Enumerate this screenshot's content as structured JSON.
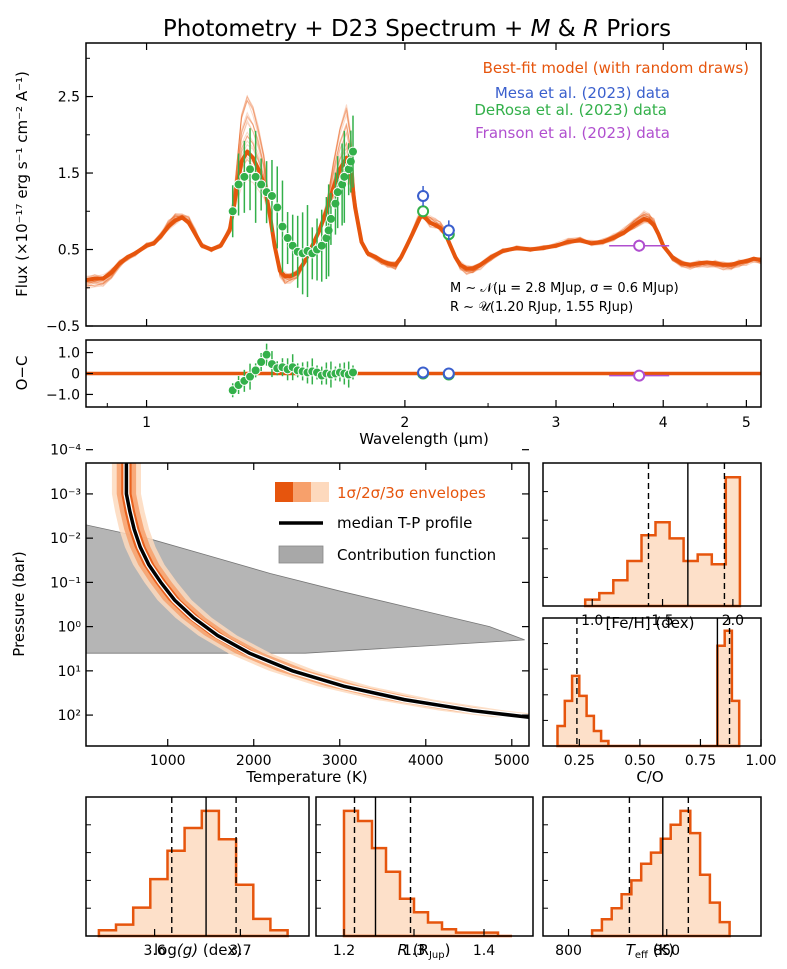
{
  "colors": {
    "model": "#e6550d",
    "mesa": "#3a5fcd",
    "derosa": "#33b04a",
    "franson": "#b04fcf",
    "sig1": "#e6550d",
    "sig2": "#f7a06b",
    "sig3": "#fdd9bd",
    "hist_fill": "#fde0c9",
    "contrib": "#a8a8a8"
  },
  "chart_data": [
    {
      "id": "spectrum",
      "type": "line",
      "title_parts": [
        "Photometry + D23 Spectrum + ",
        "M",
        " & ",
        "R",
        " Priors"
      ],
      "ylabel": "Flux (×10⁻¹⁷ erg s⁻¹ cm⁻² A⁻¹)",
      "ylim": [
        -0.5,
        3.2
      ],
      "yticks": [
        -0.5,
        0.5,
        1.5,
        2.5
      ],
      "ytick_labels": [
        "−0.5",
        "0.5",
        "1.5",
        "2.5"
      ],
      "xscale": "log",
      "xlim": [
        0.85,
        5.2
      ],
      "legend": [
        {
          "label": "Best-fit model (with random draws)",
          "color_key": "model"
        },
        {
          "label": "Mesa et al. (2023) data",
          "color_key": "mesa"
        },
        {
          "label": "DeRosa et al. (2023) data",
          "color_key": "derosa"
        },
        {
          "label": "Franson et al. (2023) data",
          "color_key": "franson"
        }
      ],
      "annotation_mass": "M ∼ 𝒩(μ = 2.8 MJup, σ = 0.6 MJup)",
      "annotation_radius": "R ∼ 𝒰(1.20 RJup, 1.55 RJup)",
      "model": [
        [
          0.85,
          0.1
        ],
        [
          0.87,
          0.12
        ],
        [
          0.89,
          0.12
        ],
        [
          0.91,
          0.2
        ],
        [
          0.93,
          0.32
        ],
        [
          0.95,
          0.4
        ],
        [
          0.97,
          0.45
        ],
        [
          1.0,
          0.55
        ],
        [
          1.02,
          0.58
        ],
        [
          1.04,
          0.68
        ],
        [
          1.06,
          0.8
        ],
        [
          1.08,
          0.88
        ],
        [
          1.1,
          0.92
        ],
        [
          1.12,
          0.85
        ],
        [
          1.14,
          0.7
        ],
        [
          1.16,
          0.55
        ],
        [
          1.19,
          0.5
        ],
        [
          1.22,
          0.55
        ],
        [
          1.25,
          0.75
        ],
        [
          1.27,
          1.2
        ],
        [
          1.29,
          1.65
        ],
        [
          1.31,
          1.78
        ],
        [
          1.33,
          1.7
        ],
        [
          1.35,
          1.55
        ],
        [
          1.37,
          1.35
        ],
        [
          1.39,
          1.0
        ],
        [
          1.41,
          0.55
        ],
        [
          1.43,
          0.22
        ],
        [
          1.45,
          0.15
        ],
        [
          1.47,
          0.15
        ],
        [
          1.5,
          0.2
        ],
        [
          1.53,
          0.35
        ],
        [
          1.56,
          0.55
        ],
        [
          1.59,
          0.75
        ],
        [
          1.62,
          1.0
        ],
        [
          1.65,
          1.3
        ],
        [
          1.68,
          1.55
        ],
        [
          1.71,
          1.7
        ],
        [
          1.73,
          1.5
        ],
        [
          1.75,
          1.05
        ],
        [
          1.78,
          0.6
        ],
        [
          1.81,
          0.45
        ],
        [
          1.85,
          0.4
        ],
        [
          1.88,
          0.35
        ],
        [
          1.91,
          0.32
        ],
        [
          1.95,
          0.3
        ],
        [
          1.98,
          0.4
        ],
        [
          2.01,
          0.55
        ],
        [
          2.04,
          0.7
        ],
        [
          2.07,
          0.85
        ],
        [
          2.09,
          0.95
        ],
        [
          2.11,
          0.92
        ],
        [
          2.14,
          0.85
        ],
        [
          2.17,
          0.82
        ],
        [
          2.2,
          0.78
        ],
        [
          2.23,
          0.7
        ],
        [
          2.26,
          0.55
        ],
        [
          2.29,
          0.4
        ],
        [
          2.32,
          0.3
        ],
        [
          2.36,
          0.25
        ],
        [
          2.4,
          0.25
        ],
        [
          2.45,
          0.3
        ],
        [
          2.52,
          0.4
        ],
        [
          2.6,
          0.48
        ],
        [
          2.7,
          0.52
        ],
        [
          2.8,
          0.5
        ],
        [
          2.9,
          0.52
        ],
        [
          3.0,
          0.55
        ],
        [
          3.1,
          0.6
        ],
        [
          3.2,
          0.62
        ],
        [
          3.3,
          0.58
        ],
        [
          3.4,
          0.6
        ],
        [
          3.5,
          0.65
        ],
        [
          3.6,
          0.72
        ],
        [
          3.7,
          0.82
        ],
        [
          3.8,
          0.9
        ],
        [
          3.85,
          0.88
        ],
        [
          3.9,
          0.82
        ],
        [
          3.95,
          0.7
        ],
        [
          4.0,
          0.55
        ],
        [
          4.1,
          0.4
        ],
        [
          4.2,
          0.32
        ],
        [
          4.3,
          0.3
        ],
        [
          4.4,
          0.32
        ],
        [
          4.5,
          0.33
        ],
        [
          4.6,
          0.32
        ],
        [
          4.7,
          0.3
        ],
        [
          4.8,
          0.3
        ],
        [
          4.9,
          0.33
        ],
        [
          5.0,
          0.35
        ],
        [
          5.1,
          0.38
        ],
        [
          5.2,
          0.36
        ]
      ],
      "derosa": [
        [
          1.26,
          1.0
        ],
        [
          1.28,
          1.35
        ],
        [
          1.3,
          1.45
        ],
        [
          1.32,
          1.55
        ],
        [
          1.34,
          1.45
        ],
        [
          1.36,
          1.35
        ],
        [
          1.38,
          1.25
        ],
        [
          1.4,
          1.2
        ],
        [
          1.42,
          1.05
        ],
        [
          1.44,
          0.8
        ],
        [
          1.46,
          0.65
        ],
        [
          1.48,
          0.55
        ],
        [
          1.5,
          0.47
        ],
        [
          1.52,
          0.45
        ],
        [
          1.54,
          0.48
        ],
        [
          1.56,
          0.45
        ],
        [
          1.58,
          0.5
        ],
        [
          1.6,
          0.55
        ],
        [
          1.62,
          0.65
        ],
        [
          1.63,
          0.75
        ],
        [
          1.64,
          0.9
        ],
        [
          1.66,
          1.1
        ],
        [
          1.67,
          1.25
        ],
        [
          1.69,
          1.35
        ],
        [
          1.7,
          1.45
        ],
        [
          1.72,
          1.55
        ],
        [
          1.73,
          1.65
        ],
        [
          1.74,
          1.78
        ],
        [
          2.1,
          1.0
        ],
        [
          2.25,
          0.7
        ]
      ],
      "mesa": [
        [
          2.1,
          1.2
        ],
        [
          2.25,
          0.75
        ]
      ],
      "franson": [
        [
          3.75,
          0.55
        ]
      ]
    },
    {
      "id": "residuals",
      "type": "scatter",
      "ylabel": "O−C",
      "ylim": [
        -1.6,
        1.6
      ],
      "yticks": [
        -1,
        0,
        1
      ],
      "ytick_labels": [
        "−1.0",
        "0",
        "1.0"
      ],
      "xlabel": "Wavelength (μm)",
      "xticks": [
        1,
        2,
        3,
        4,
        5
      ],
      "xtick_labels": [
        "1",
        "2",
        "3",
        "4",
        "5"
      ],
      "derosa": [
        [
          1.26,
          -0.8
        ],
        [
          1.28,
          -0.55
        ],
        [
          1.3,
          -0.35
        ],
        [
          1.32,
          -0.15
        ],
        [
          1.34,
          0.15
        ],
        [
          1.36,
          0.55
        ],
        [
          1.38,
          0.9
        ],
        [
          1.4,
          0.45
        ],
        [
          1.42,
          0.25
        ],
        [
          1.44,
          0.3
        ],
        [
          1.46,
          0.2
        ],
        [
          1.48,
          0.3
        ],
        [
          1.5,
          0.15
        ],
        [
          1.52,
          0.1
        ],
        [
          1.54,
          0.05
        ],
        [
          1.56,
          0.1
        ],
        [
          1.58,
          0.05
        ],
        [
          1.6,
          -0.1
        ],
        [
          1.62,
          0.0
        ],
        [
          1.64,
          -0.05
        ],
        [
          1.66,
          0.0
        ],
        [
          1.68,
          0.05
        ],
        [
          1.7,
          0.0
        ],
        [
          1.72,
          -0.05
        ],
        [
          1.74,
          0.05
        ],
        [
          2.1,
          0.0
        ],
        [
          2.25,
          -0.05
        ]
      ],
      "mesa": [
        [
          2.1,
          0.05
        ],
        [
          2.25,
          0.0
        ]
      ],
      "franson": [
        [
          3.75,
          -0.1
        ]
      ]
    },
    {
      "id": "tp_profile",
      "type": "line",
      "xlabel": "Temperature (K)",
      "ylabel": "Pressure (bar)",
      "xlim": [
        50,
        5200
      ],
      "xticks": [
        1000,
        2000,
        3000,
        4000,
        5000
      ],
      "xtick_labels": [
        "1000",
        "2000",
        "3000",
        "4000",
        "5000"
      ],
      "yscale": "log-inverted",
      "ylim": [
        0.0002,
        500
      ],
      "yticks": [
        -4,
        -3,
        -2,
        -1,
        0,
        1,
        2
      ],
      "ytick_labels": [
        "10⁻⁴",
        "10⁻³",
        "10⁻²",
        "10⁻¹",
        "10⁰",
        "10¹",
        "10²"
      ],
      "legend": [
        {
          "label": "1σ/2σ/3σ envelopes",
          "color_key": "sig1"
        },
        {
          "label": "median T-P profile",
          "color": "#000000"
        },
        {
          "label": "Contribution function",
          "color_key": "contrib"
        }
      ],
      "median": [
        [
          520,
          -4.4
        ],
        [
          520,
          -3.0
        ],
        [
          560,
          -2.6
        ],
        [
          610,
          -2.2
        ],
        [
          680,
          -1.8
        ],
        [
          780,
          -1.4
        ],
        [
          920,
          -1.0
        ],
        [
          1080,
          -0.6
        ],
        [
          1300,
          -0.2
        ],
        [
          1580,
          0.2
        ],
        [
          1950,
          0.6
        ],
        [
          2450,
          1.0
        ],
        [
          3050,
          1.35
        ],
        [
          3750,
          1.65
        ],
        [
          4550,
          1.9
        ],
        [
          5200,
          2.05
        ]
      ],
      "sigma_width_k": [
        150,
        280,
        420
      ],
      "contribution_log_p": [
        -2.3,
        -2.0,
        -1.6,
        -1.2,
        -0.8,
        -0.4,
        0.0,
        0.3,
        0.6
      ],
      "contribution_rel": [
        0.0,
        0.14,
        0.28,
        0.42,
        0.58,
        0.75,
        0.92,
        1.0,
        0.5
      ],
      "contribution_peak_K": 5150
    },
    {
      "id": "feh",
      "type": "histogram",
      "xlabel": "[Fe/H] (dex)",
      "xlim": [
        0.65,
        2.2
      ],
      "xticks": [
        1.0,
        1.5,
        2.0
      ],
      "xtick_labels": [
        "1.0",
        "1.5",
        "2.0"
      ],
      "bin_edges": [
        0.95,
        1.05,
        1.15,
        1.25,
        1.35,
        1.45,
        1.55,
        1.65,
        1.75,
        1.85,
        1.95,
        2.05
      ],
      "counts": [
        2,
        4,
        8,
        14,
        22,
        26,
        21,
        14,
        16,
        13,
        40
      ],
      "percentiles": [
        1.4,
        1.68,
        1.94
      ]
    },
    {
      "id": "co",
      "type": "histogram",
      "xlabel": "C/O",
      "xlim": [
        0.1,
        1.0
      ],
      "xticks": [
        0.25,
        0.5,
        0.75,
        1.0
      ],
      "xtick_labels": [
        "0.25",
        "0.50",
        "0.75",
        "1.00"
      ],
      "bin_edges": [
        0.16,
        0.19,
        0.22,
        0.25,
        0.28,
        0.31,
        0.34,
        0.37,
        0.4,
        0.43,
        0.46,
        0.49,
        0.52,
        0.55,
        0.58,
        0.61,
        0.64,
        0.67,
        0.7,
        0.73,
        0.76,
        0.79,
        0.82,
        0.85,
        0.88,
        0.91
      ],
      "counts": [
        4,
        9,
        14,
        10,
        6,
        3,
        1,
        0,
        0,
        0,
        0,
        0,
        0,
        0,
        0,
        0,
        0,
        0,
        0,
        0,
        0,
        0,
        20,
        23,
        9
      ],
      "percentiles": [
        0.24,
        0.82,
        0.87
      ]
    },
    {
      "id": "logg",
      "type": "histogram",
      "xlabel_parts": [
        "log",
        "(g)",
        " (dex)"
      ],
      "xlim": [
        3.52,
        3.78
      ],
      "xticks": [
        3.6,
        3.7
      ],
      "xtick_labels": [
        "3.6",
        "3.7"
      ],
      "bin_edges": [
        3.535,
        3.555,
        3.575,
        3.595,
        3.615,
        3.635,
        3.655,
        3.675,
        3.695,
        3.715,
        3.735,
        3.755
      ],
      "counts": [
        2,
        4,
        10,
        20,
        30,
        38,
        44,
        34,
        18,
        6,
        2
      ],
      "percentiles": [
        3.62,
        3.66,
        3.695
      ]
    },
    {
      "id": "radius",
      "type": "histogram",
      "xlabel_parts": [
        "R",
        " (R",
        "Jup",
        ")"
      ],
      "xlim": [
        1.16,
        1.47
      ],
      "xticks": [
        1.2,
        1.3,
        1.4
      ],
      "xtick_labels": [
        "1.2",
        "1.3",
        "1.4"
      ],
      "bin_edges": [
        1.2,
        1.22,
        1.24,
        1.26,
        1.28,
        1.3,
        1.32,
        1.34,
        1.36,
        1.38,
        1.4,
        1.42,
        1.44
      ],
      "counts": [
        37,
        34,
        26,
        19,
        11,
        7,
        4,
        2,
        1,
        1,
        1,
        0
      ],
      "percentiles": [
        1.215,
        1.245,
        1.295
      ]
    },
    {
      "id": "teff",
      "type": "histogram",
      "xlabel_parts": [
        "T",
        "eff",
        " (K)"
      ],
      "xlim": [
        787,
        898
      ],
      "xticks": [
        800,
        850
      ],
      "xtick_labels": [
        "800",
        "850"
      ],
      "bin_edges": [
        812,
        817,
        822,
        827,
        832,
        837,
        842,
        847,
        852,
        857,
        862,
        867,
        872,
        877,
        882
      ],
      "counts": [
        2,
        6,
        10,
        15,
        20,
        26,
        30,
        35,
        40,
        45,
        37,
        22,
        12,
        5
      ],
      "percentiles": [
        831,
        848,
        861
      ]
    }
  ]
}
